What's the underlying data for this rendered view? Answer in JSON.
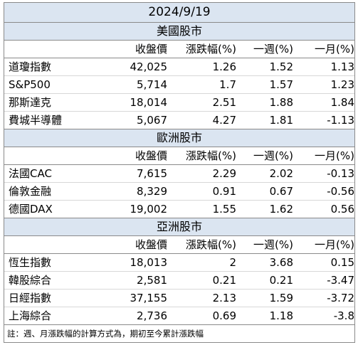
{
  "title": "2024/9/19",
  "columns": [
    "收盤價",
    "漲跌幅(%)",
    "一週(%)",
    "一月(%)"
  ],
  "sections": [
    {
      "name": "美國股市",
      "rows": [
        {
          "name": "道瓊指數",
          "close": "42,025",
          "change": "1.26",
          "week": "1.52",
          "month": "1.13"
        },
        {
          "name": "S&P500",
          "close": "5,714",
          "change": "1.7",
          "week": "1.57",
          "month": "1.23"
        },
        {
          "name": "那斯達克",
          "close": "18,014",
          "change": "2.51",
          "week": "1.88",
          "month": "1.84"
        },
        {
          "name": "費城半導體",
          "close": "5,067",
          "change": "4.27",
          "week": "1.81",
          "month": "-1.13"
        }
      ]
    },
    {
      "name": "歐洲股市",
      "rows": [
        {
          "name": "法國CAC",
          "close": "7,615",
          "change": "2.29",
          "week": "2.02",
          "month": "-0.13"
        },
        {
          "name": "倫敦金融",
          "close": "8,329",
          "change": "0.91",
          "week": "0.67",
          "month": "-0.56"
        },
        {
          "name": "德國DAX",
          "close": "19,002",
          "change": "1.55",
          "week": "1.62",
          "month": "0.56"
        }
      ]
    },
    {
      "name": "亞洲股市",
      "rows": [
        {
          "name": "恆生指數",
          "close": "18,013",
          "change": "2",
          "week": "3.68",
          "month": "0.15"
        },
        {
          "name": "韓股綜合",
          "close": "2,581",
          "change": "0.21",
          "week": "0.21",
          "month": "-3.47"
        },
        {
          "name": "日經指數",
          "close": "37,155",
          "change": "2.13",
          "week": "1.59",
          "month": "-3.72"
        },
        {
          "name": "上海綜合",
          "close": "2,736",
          "change": "0.69",
          "week": "1.18",
          "month": "-3.8"
        }
      ]
    }
  ],
  "note": "註：週、月漲跌幅的計算方式為，期初至今累計漲跌幅"
}
